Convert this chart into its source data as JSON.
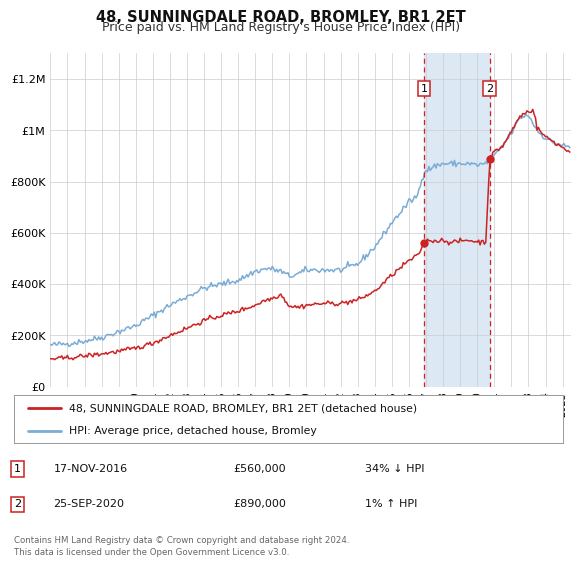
{
  "title": "48, SUNNINGDALE ROAD, BROMLEY, BR1 2ET",
  "subtitle": "Price paid vs. HM Land Registry's House Price Index (HPI)",
  "title_fontsize": 10.5,
  "subtitle_fontsize": 9,
  "xlim_start": 1995.0,
  "xlim_end": 2025.5,
  "ylim": [
    0,
    1300000
  ],
  "yticks": [
    0,
    200000,
    400000,
    600000,
    800000,
    1000000,
    1200000
  ],
  "ytick_labels": [
    "£0",
    "£200K",
    "£400K",
    "£600K",
    "£800K",
    "£1M",
    "£1.2M"
  ],
  "hpi_color": "#7aacd6",
  "price_color": "#cc2222",
  "sale1_date": 2016.88,
  "sale1_price": 560000,
  "sale2_date": 2020.73,
  "sale2_price": 890000,
  "legend_label1": "48, SUNNINGDALE ROAD, BROMLEY, BR1 2ET (detached house)",
  "legend_label2": "HPI: Average price, detached house, Bromley",
  "annotation1_date": "17-NOV-2016",
  "annotation1_price": "£560,000",
  "annotation1_hpi": "34% ↓ HPI",
  "annotation2_date": "25-SEP-2020",
  "annotation2_price": "£890,000",
  "annotation2_hpi": "1% ↑ HPI",
  "footnote": "Contains HM Land Registry data © Crown copyright and database right 2024.\nThis data is licensed under the Open Government Licence v3.0.",
  "grid_color": "#cccccc",
  "span_color": "#dde8f5"
}
